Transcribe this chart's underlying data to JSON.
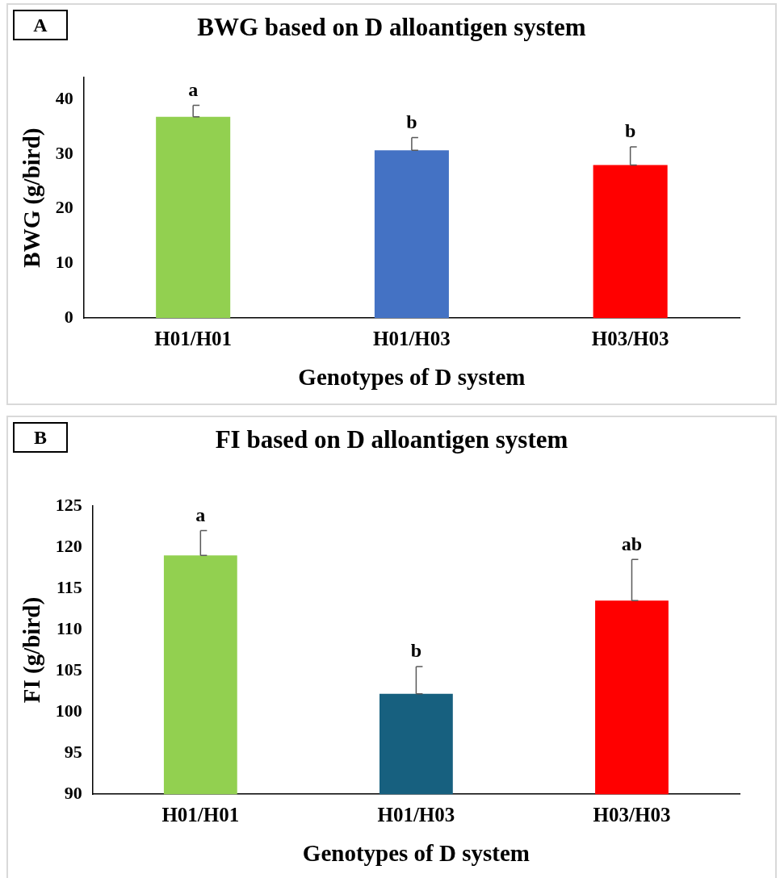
{
  "chart_data": [
    {
      "type": "bar",
      "title": "BWG based on D alloantigen system",
      "xlabel": "Genotypes of D system",
      "ylabel": "BWG (g/bird)",
      "categories": [
        "H01/H01",
        "H01/H03",
        "H03/H03"
      ],
      "values": [
        36.8,
        30.7,
        28.0
      ],
      "colors": [
        "#92d050",
        "#4472c4",
        "#ff0000"
      ],
      "errors": [
        [
          36.8,
          38.9
        ],
        [
          30.7,
          33.0
        ],
        [
          28.0,
          31.3
        ]
      ],
      "ylim": [
        0,
        44
      ],
      "yticks": [
        0,
        10,
        20,
        30,
        40
      ],
      "grid": false,
      "legend": false,
      "annotations": [
        "A",
        {
          "text": "a",
          "x": "H01/H01",
          "y": 38.9
        },
        {
          "text": "b",
          "x": "H01/H03",
          "y": 33.0
        },
        {
          "text": "b",
          "x": "H03/H03",
          "y": 31.3
        }
      ]
    },
    {
      "type": "bar",
      "title": "FI based on D alloantigen system",
      "xlabel": "Genotypes of D system",
      "ylabel": "FI (g/bird)",
      "categories": [
        "H01/H01",
        "H01/H03",
        "H03/H03"
      ],
      "values": [
        119.0,
        102.2,
        113.5
      ],
      "colors": [
        "#92d050",
        "#17607f",
        "#ff0000"
      ],
      "errors": [
        [
          119.0,
          122.0
        ],
        [
          102.2,
          105.5
        ],
        [
          113.5,
          118.5
        ]
      ],
      "ylim": [
        90,
        125
      ],
      "yticks": [
        90,
        95,
        100,
        105,
        110,
        115,
        120,
        125
      ],
      "grid": false,
      "legend": false,
      "annotations": [
        "B",
        {
          "text": "a",
          "x": "H01/H01",
          "y": 122.0
        },
        {
          "text": "b",
          "x": "H01/H03",
          "y": 105.5
        },
        {
          "text": "ab",
          "x": "H03/H03",
          "y": 118.5
        }
      ]
    }
  ]
}
